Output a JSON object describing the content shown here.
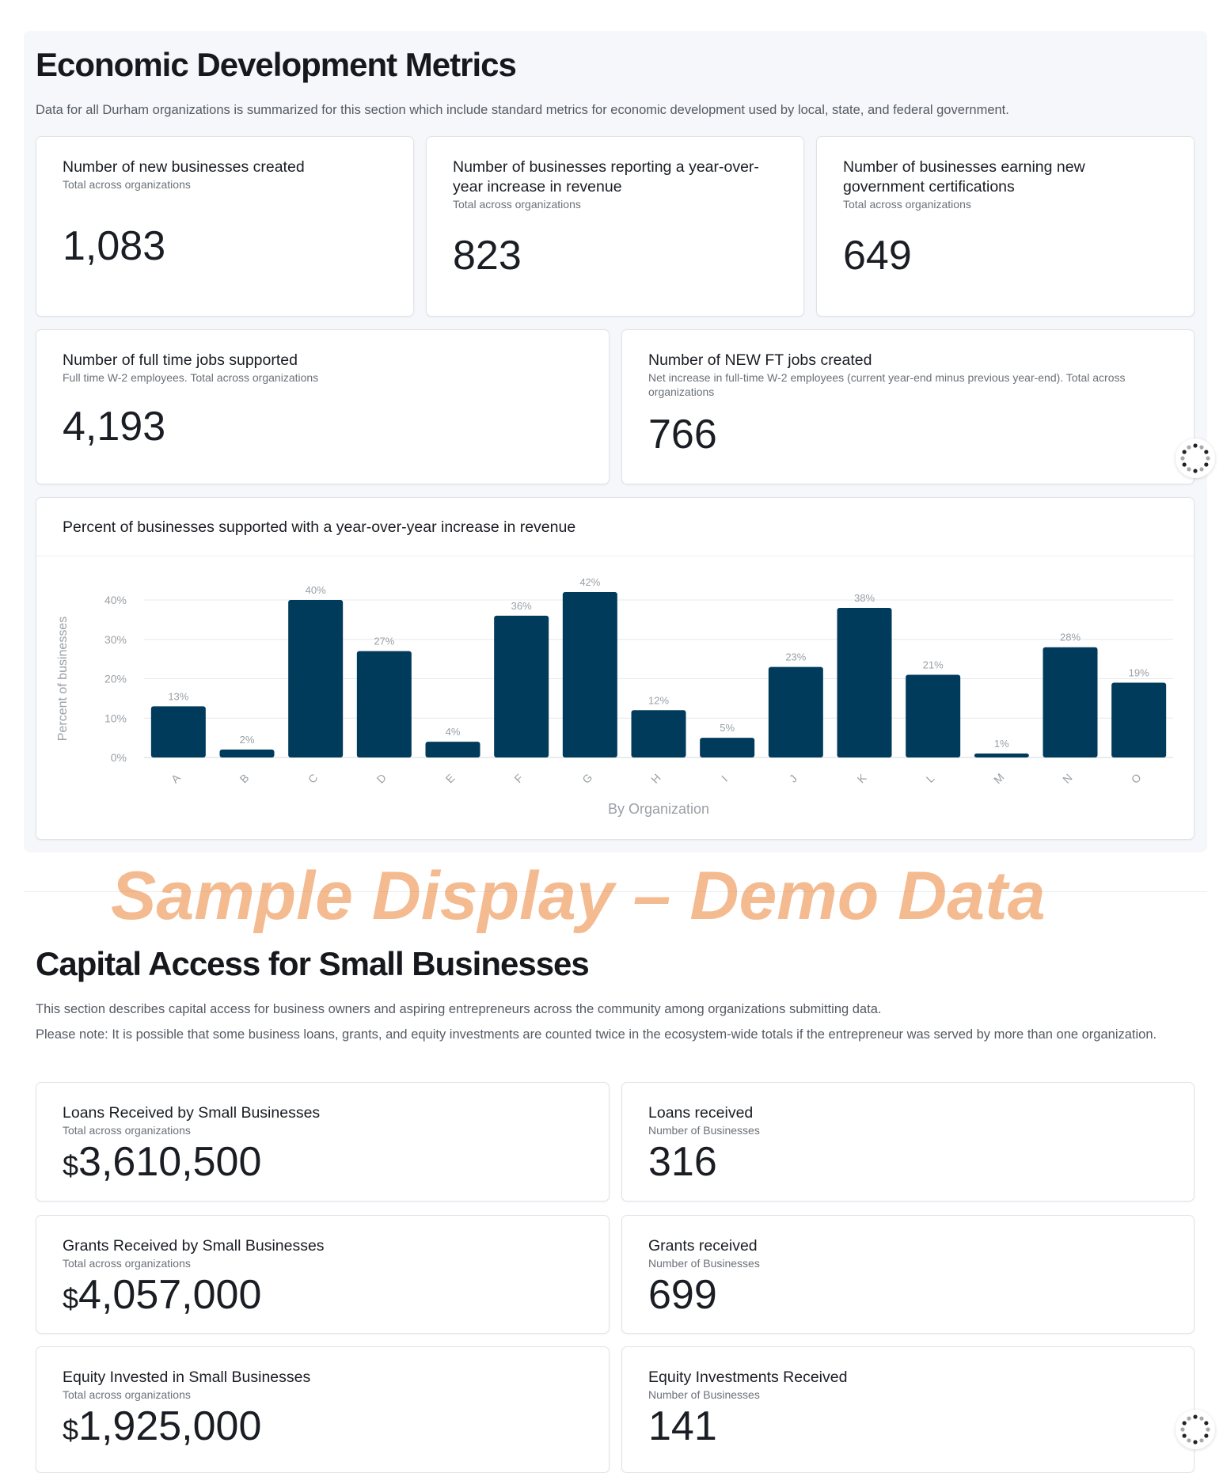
{
  "economic": {
    "title": "Economic Development Metrics",
    "description": "Data for all Durham organizations is summarized for this section which include standard metrics for economic development used by local, state, and federal government.",
    "cards": [
      {
        "title": "Number of new businesses created",
        "subtitle": "Total across organizations",
        "value": "1,083"
      },
      {
        "title": "Number of businesses reporting a year-over-year increase in revenue",
        "subtitle": "Total across organizations",
        "value": "823"
      },
      {
        "title": "Number of businesses earning new government certifications",
        "subtitle": "Total across organizations",
        "value": "649"
      },
      {
        "title": "Number of full time jobs supported",
        "subtitle": "Full time W-2 employees. Total across organizations",
        "value": "4,193"
      },
      {
        "title": "Number of NEW FT jobs created",
        "subtitle": "Net increase in full-time W-2 employees (current year-end minus previous year-end). Total across organizations",
        "value": "766"
      }
    ]
  },
  "chart_data": {
    "type": "bar",
    "title": "Percent of businesses supported with a year-over-year increase in revenue",
    "xlabel": "By Organization",
    "ylabel": "Percent of businesses",
    "categories": [
      "A",
      "B",
      "C",
      "D",
      "E",
      "F",
      "G",
      "H",
      "I",
      "J",
      "K",
      "L",
      "M",
      "N",
      "O"
    ],
    "values": [
      13,
      2,
      40,
      27,
      4,
      36,
      42,
      12,
      5,
      23,
      38,
      21,
      1,
      28,
      19
    ],
    "data_labels": [
      "13%",
      "2%",
      "40%",
      "27%",
      "4%",
      "36%",
      "42%",
      "12%",
      "5%",
      "23%",
      "38%",
      "21%",
      "1%",
      "28%",
      "19%"
    ],
    "yticks": [
      "0%",
      "10%",
      "20%",
      "30%",
      "40%"
    ],
    "ylim": [
      0,
      45
    ],
    "grid": true,
    "bar_color": "#003b5c"
  },
  "capital": {
    "title": "Capital Access for Small Businesses",
    "description1": "This section describes capital access for business owners and aspiring entrepreneurs across the community among organizations submitting data.",
    "description2": "Please note: It is possible that some business loans, grants, and equity investments are counted twice in the ecosystem-wide totals if the entrepreneur was served by more than one organization.",
    "cards": [
      {
        "title": "Loans Received by Small Businesses",
        "subtitle": "Total across organizations",
        "currency": "$",
        "value": "3,610,500"
      },
      {
        "title": "Loans received",
        "subtitle": "Number of Businesses",
        "value": "316"
      },
      {
        "title": "Grants Received by Small Businesses",
        "subtitle": "Total across organizations",
        "currency": "$",
        "value": "4,057,000"
      },
      {
        "title": "Grants received",
        "subtitle": "Number of Businesses",
        "value": "699"
      },
      {
        "title": "Equity Invested in Small Businesses",
        "subtitle": "Total across organizations",
        "currency": "$",
        "value": "1,925,000"
      },
      {
        "title": "Equity Investments Received",
        "subtitle": "Number of Businesses",
        "value": "141"
      }
    ]
  },
  "watermark": "Sample Display – Demo Data",
  "icons": {
    "spinner": "loading-spinner-icon"
  }
}
